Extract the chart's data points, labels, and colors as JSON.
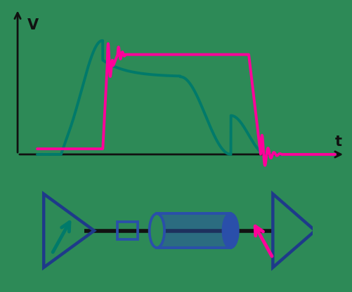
{
  "bg_color": "#2d8a57",
  "teal_color": "#007a6a",
  "magenta_color": "#ff0099",
  "blue_color": "#1e3a8a",
  "blue_fill": "#2a4faa",
  "axis_color": "#111111",
  "title_v": "V",
  "title_t": "t",
  "fig_width": 5.01,
  "fig_height": 4.16,
  "dpi": 100
}
